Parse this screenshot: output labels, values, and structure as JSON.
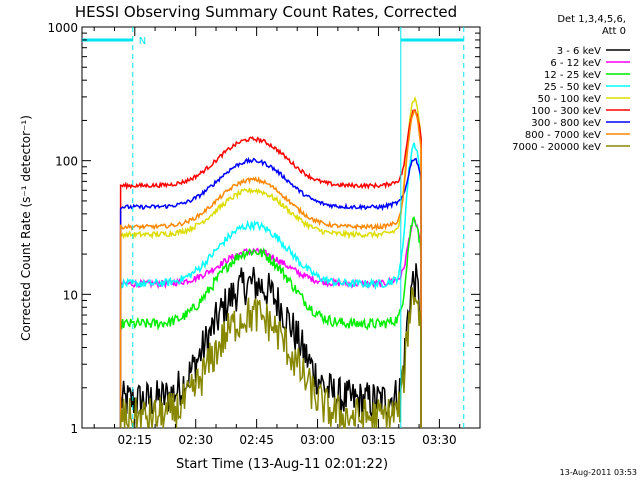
{
  "chart_data": {
    "type": "line",
    "title": "HESSI Observing Summary Count Rates, Corrected",
    "xlabel": "Start Time (13-Aug-11 02:01:22)",
    "ylabel": "Corrected Count Rate (s⁻¹ detector⁻¹)",
    "yscale": "log",
    "ylim": [
      1,
      1000
    ],
    "xlim_minutes": [
      122,
      220
    ],
    "x_ticks": [
      {
        "minute": 135,
        "label": "02:15"
      },
      {
        "minute": 150,
        "label": "02:30"
      },
      {
        "minute": 165,
        "label": "02:45"
      },
      {
        "minute": 180,
        "label": "03:00"
      },
      {
        "minute": 195,
        "label": "03:15"
      },
      {
        "minute": 210,
        "label": "03:30"
      }
    ],
    "y_ticks": [
      {
        "value": 1,
        "label": "1"
      },
      {
        "value": 10,
        "label": "10"
      },
      {
        "value": 100,
        "label": "100"
      },
      {
        "value": 1000,
        "label": "1000"
      }
    ],
    "legend_header": [
      "Det 1,3,4,5,6,",
      "Att 0"
    ],
    "legend_position": "right",
    "night_marker": {
      "label": "N",
      "start_minute": 122,
      "end_minute": 134.5
    },
    "day_marker": {
      "start_minute": 200.5,
      "end_minute": 216
    },
    "data_start_minute": 131.5,
    "data_end_minute": 205.5,
    "series": [
      {
        "name": "3 - 6 keV",
        "color": "#000000",
        "base": 1.6,
        "peak": 12,
        "flare": 11,
        "noise": 0.3
      },
      {
        "name": "6 - 12 keV",
        "color": "#ff00ff",
        "base": 12,
        "peak": 21,
        "flare": 30,
        "noise": 0.05
      },
      {
        "name": "12 - 25 keV",
        "color": "#00ee00",
        "base": 6,
        "peak": 21,
        "flare": 32,
        "noise": 0.08
      },
      {
        "name": "25 - 50 keV",
        "color": "#00ffff",
        "base": 12,
        "peak": 33,
        "flare": 115,
        "noise": 0.06
      },
      {
        "name": "50 - 100 keV",
        "color": "#dddd00",
        "base": 28,
        "peak": 60,
        "flare": 250,
        "noise": 0.04
      },
      {
        "name": "100 - 300 keV",
        "color": "#ff0000",
        "base": 65,
        "peak": 145,
        "flare": 210,
        "noise": 0.03
      },
      {
        "name": "300 - 800 keV",
        "color": "#0000ff",
        "base": 45,
        "peak": 100,
        "flare": 90,
        "noise": 0.03
      },
      {
        "name": "800 - 7000 keV",
        "color": "#ff8800",
        "base": 32,
        "peak": 72,
        "flare": 200,
        "noise": 0.03
      },
      {
        "name": "7000 - 20000 keV",
        "color": "#888800",
        "base": 1.2,
        "peak": 7,
        "flare": 9,
        "noise": 0.3
      }
    ]
  },
  "footer": {
    "timestamp": "13-Aug-2011 03:53"
  }
}
